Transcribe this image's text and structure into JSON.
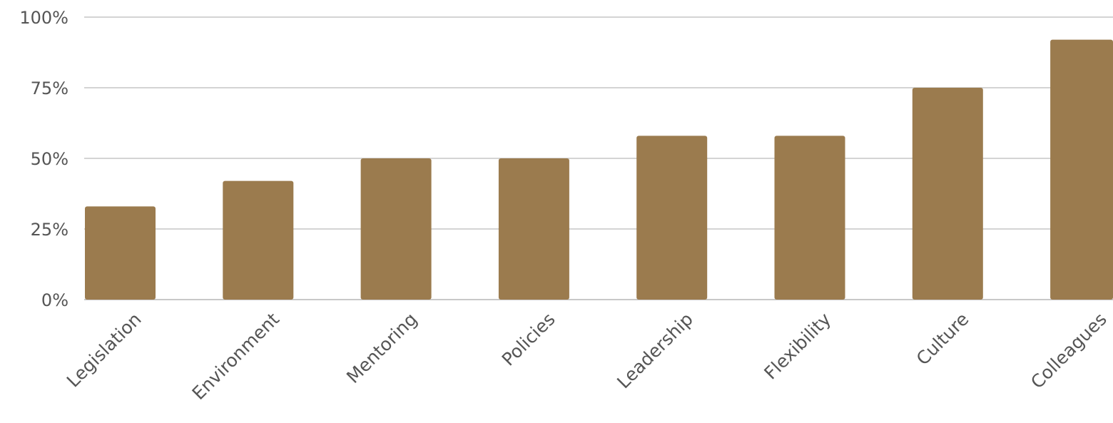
{
  "chart_data": {
    "type": "bar",
    "categories": [
      "Legislation",
      "Environment",
      "Mentoring",
      "Policies",
      "Leadership",
      "Flexibility",
      "Culture",
      "Colleagues"
    ],
    "values": [
      33,
      42,
      50,
      50,
      58,
      58,
      75,
      92
    ],
    "title": "",
    "xlabel": "",
    "ylabel": "",
    "ylim": [
      0,
      100
    ],
    "yticks": [
      0,
      25,
      50,
      75,
      100
    ],
    "ytick_labels": [
      "0%",
      "25%",
      "50%",
      "75%",
      "100%"
    ],
    "grid": true,
    "legend": "none",
    "bar_color": "#9b7b4e",
    "grid_color": "#d4d4d4",
    "text_color": "#555555"
  }
}
